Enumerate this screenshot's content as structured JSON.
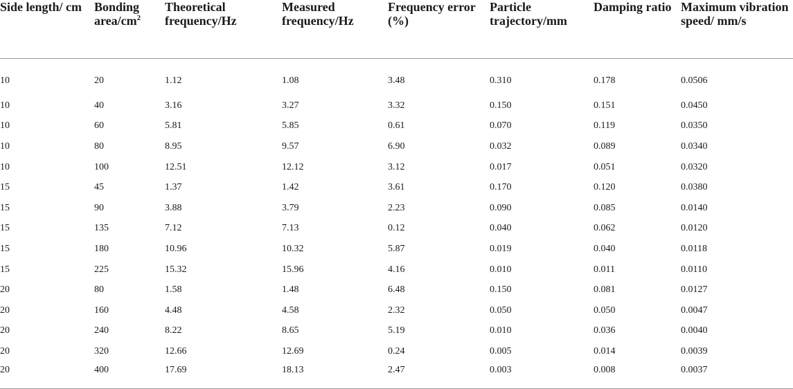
{
  "table": {
    "headers": [
      {
        "text": "Side length/ cm",
        "sup": ""
      },
      {
        "text": "Bonding area/cm",
        "sup": "2"
      },
      {
        "text": "Theoretical frequency/Hz",
        "sup": ""
      },
      {
        "text": "Measured frequency/Hz",
        "sup": ""
      },
      {
        "text": "Frequency error (%)",
        "sup": ""
      },
      {
        "text": "Particle trajectory/mm",
        "sup": ""
      },
      {
        "text": "Damping ratio",
        "sup": ""
      },
      {
        "text": "Maximum vibration speed/ mm/s",
        "sup": ""
      }
    ],
    "rows": [
      [
        "10",
        "20",
        "1.12",
        "1.08",
        "3.48",
        "0.310",
        "0.178",
        "0.0506"
      ],
      [
        "10",
        "40",
        "3.16",
        "3.27",
        "3.32",
        "0.150",
        "0.151",
        "0.0450"
      ],
      [
        "10",
        "60",
        "5.81",
        "5.85",
        "0.61",
        "0.070",
        "0.119",
        "0.0350"
      ],
      [
        "10",
        "80",
        "8.95",
        "9.57",
        "6.90",
        "0.032",
        "0.089",
        "0.0340"
      ],
      [
        "10",
        "100",
        "12.51",
        "12.12",
        "3.12",
        "0.017",
        "0.051",
        "0.0320"
      ],
      [
        "15",
        "45",
        "1.37",
        "1.42",
        "3.61",
        "0.170",
        "0.120",
        "0.0380"
      ],
      [
        "15",
        "90",
        "3.88",
        "3.79",
        "2.23",
        "0.090",
        "0.085",
        "0.0140"
      ],
      [
        "15",
        "135",
        "7.12",
        "7.13",
        "0.12",
        "0.040",
        "0.062",
        "0.0120"
      ],
      [
        "15",
        "180",
        "10.96",
        "10.32",
        "5.87",
        "0.019",
        "0.040",
        "0.0118"
      ],
      [
        "15",
        "225",
        "15.32",
        "15.96",
        "4.16",
        "0.010",
        "0.011",
        "0.0110"
      ],
      [
        "20",
        "80",
        "1.58",
        "1.48",
        "6.48",
        "0.150",
        "0.081",
        "0.0127"
      ],
      [
        "20",
        "160",
        "4.48",
        "4.58",
        "2.32",
        "0.050",
        "0.050",
        "0.0047"
      ],
      [
        "20",
        "240",
        "8.22",
        "8.65",
        "5.19",
        "0.010",
        "0.036",
        "0.0040"
      ],
      [
        "20",
        "320",
        "12.66",
        "12.69",
        "0.24",
        "0.005",
        "0.014",
        "0.0039"
      ],
      [
        "20",
        "400",
        "17.69",
        "18.13",
        "2.47",
        "0.003",
        "0.008",
        "0.0037"
      ]
    ]
  }
}
